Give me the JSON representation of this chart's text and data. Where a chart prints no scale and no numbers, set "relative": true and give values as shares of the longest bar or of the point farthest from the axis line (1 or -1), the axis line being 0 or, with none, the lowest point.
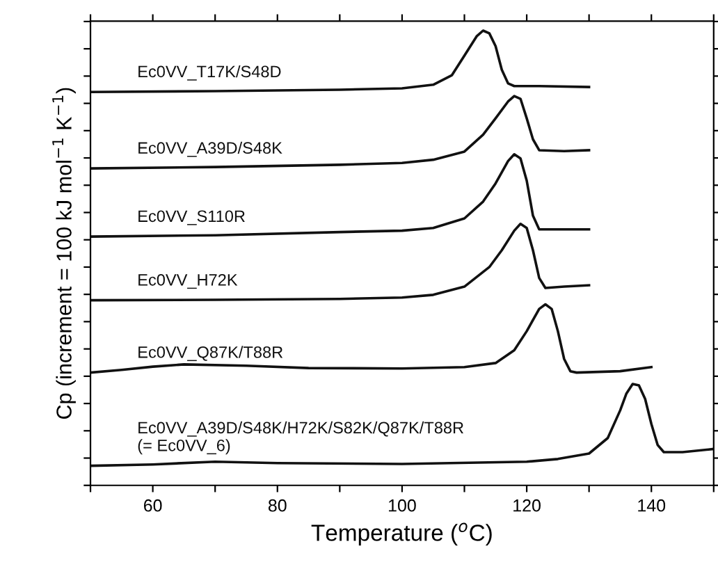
{
  "chart_data": {
    "type": "line",
    "relative": true,
    "xlabel": "Temperature ($^{o}$C)",
    "ylabel": "Cp (increment = 100 kJ mol$^{−1}$ K$^{−1}$)",
    "xlim": [
      50,
      150
    ],
    "xticks": [
      {
        "value": 50,
        "label": null
      },
      60,
      {
        "value": 70,
        "label": null
      },
      80,
      {
        "value": 90,
        "label": null
      },
      100,
      {
        "value": 110,
        "label": null
      },
      120,
      {
        "value": 130,
        "label": null
      },
      140,
      {
        "value": 150,
        "label": null
      }
    ],
    "tick_labels": "x",
    "grid": false,
    "legend": false,
    "marker": "none",
    "line_style": "solid",
    "series": [
      {
        "name": "Ec0VV_T17K/S48D",
        "color": "#111111",
        "x": [
          50,
          70,
          90,
          100,
          105,
          108,
          110,
          112,
          113,
          114,
          115,
          116,
          117,
          118,
          122,
          130
        ],
        "values": [
          0.865,
          0.867,
          0.87,
          0.873,
          0.881,
          0.902,
          0.945,
          0.988,
          1.0,
          0.994,
          0.966,
          0.914,
          0.884,
          0.878,
          0.878,
          0.876
        ]
      },
      {
        "name": "Ec0VV_A39D/S48K",
        "color": "#111111",
        "x": [
          50,
          70,
          90,
          100,
          105,
          110,
          113,
          115,
          117,
          118,
          119,
          120,
          121,
          122,
          126,
          130
        ],
        "values": [
          0.697,
          0.7,
          0.705,
          0.709,
          0.716,
          0.734,
          0.771,
          0.807,
          0.844,
          0.856,
          0.85,
          0.807,
          0.761,
          0.737,
          0.735,
          0.737
        ]
      },
      {
        "name": "Ec0VV_S110R",
        "color": "#111111",
        "x": [
          50,
          70,
          90,
          100,
          105,
          110,
          113,
          115,
          117,
          118,
          119,
          120,
          121,
          122,
          126,
          130
        ],
        "values": [
          0.547,
          0.55,
          0.557,
          0.56,
          0.566,
          0.587,
          0.624,
          0.664,
          0.713,
          0.728,
          0.719,
          0.67,
          0.593,
          0.563,
          0.563,
          0.563
        ]
      },
      {
        "name": "Ec0VV_H72K",
        "color": "#111111",
        "x": [
          50,
          70,
          90,
          100,
          105,
          110,
          114,
          116,
          118,
          119,
          120,
          121,
          122,
          123,
          126,
          130
        ],
        "values": [
          0.407,
          0.408,
          0.41,
          0.413,
          0.419,
          0.437,
          0.48,
          0.517,
          0.56,
          0.575,
          0.566,
          0.517,
          0.456,
          0.434,
          0.437,
          0.44
        ]
      },
      {
        "name": "Ec0VV_Q87K/T88R",
        "color": "#111111",
        "x": [
          50,
          55,
          60,
          65,
          75,
          85,
          100,
          110,
          115,
          118,
          120,
          122,
          123,
          124,
          125,
          126,
          127,
          128,
          135,
          140
        ],
        "values": [
          0.248,
          0.254,
          0.261,
          0.266,
          0.263,
          0.258,
          0.257,
          0.26,
          0.269,
          0.297,
          0.339,
          0.388,
          0.398,
          0.388,
          0.339,
          0.278,
          0.251,
          0.248,
          0.251,
          0.26
        ]
      },
      {
        "name": "Ec0VV_A39D/S48K/H72K/S82K/Q87K/T88R\n(= Ec0VV_6)",
        "color": "#111111",
        "x": [
          50,
          60,
          70,
          80,
          100,
          120,
          125,
          130,
          133,
          135,
          136,
          137,
          138,
          139,
          140,
          141,
          142,
          145,
          150
        ],
        "values": [
          0.043,
          0.046,
          0.052,
          0.049,
          0.047,
          0.052,
          0.058,
          0.07,
          0.104,
          0.165,
          0.202,
          0.223,
          0.22,
          0.19,
          0.135,
          0.089,
          0.073,
          0.073,
          0.08
        ]
      }
    ]
  }
}
